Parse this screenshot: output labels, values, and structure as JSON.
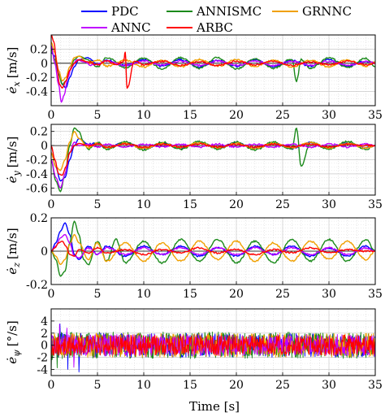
{
  "chart_data": {
    "type": "line",
    "xlabel": "Time [s]",
    "xlim": [
      0,
      35
    ],
    "x_ticks": [
      0,
      5,
      10,
      15,
      20,
      25,
      30,
      35
    ],
    "grid": true,
    "minor_grid": true,
    "legend": {
      "placement": "top",
      "entries": [
        {
          "name": "PDC",
          "color": "#0000ff"
        },
        {
          "name": "ANNISMC",
          "color": "#1b8a1b"
        },
        {
          "name": "GRNNC",
          "color": "#f0a000"
        },
        {
          "name": "ANNC",
          "color": "#c000ff"
        },
        {
          "name": "ARBC",
          "color": "#ff0000"
        }
      ]
    },
    "panels": [
      {
        "id": "ex",
        "ylabel_var": "ė",
        "ylabel_sub": "x",
        "ylabel_unit": "[m/s]",
        "ylim": [
          -0.6,
          0.4
        ],
        "y_ticks": [
          -0.4,
          -0.2,
          0,
          0.2
        ],
        "y_tick_labels": [
          "-0.4",
          "-0.2",
          "0",
          "0.2"
        ],
        "series": [
          {
            "name": "PDC",
            "x": [
              0,
              0.4,
              0.8,
              1.2,
              1.6,
              2,
              2.5,
              3,
              4,
              5,
              6,
              8,
              10,
              12,
              14,
              16,
              18,
              20,
              22,
              24,
              26,
              28,
              30,
              32,
              34,
              35
            ],
            "y": [
              0.15,
              0.1,
              -0.1,
              -0.3,
              -0.35,
              -0.2,
              -0.05,
              0.05,
              0.08,
              -0.02,
              0.04,
              -0.03,
              0.05,
              -0.04,
              0.05,
              -0.05,
              0.04,
              -0.04,
              0.05,
              -0.05,
              0.04,
              -0.04,
              0.05,
              -0.04,
              0.03,
              0.0
            ]
          },
          {
            "name": "ANNISMC",
            "x": [
              0,
              0.4,
              0.8,
              1.2,
              1.6,
              2,
              2.5,
              3,
              4,
              5,
              6,
              8,
              10,
              12,
              14,
              16,
              18,
              20,
              22,
              24,
              26,
              26.5,
              27,
              28,
              30,
              32,
              34,
              35
            ],
            "y": [
              0.2,
              0.05,
              -0.15,
              -0.3,
              -0.25,
              -0.1,
              0.05,
              0.1,
              0.05,
              -0.05,
              0.08,
              -0.06,
              0.07,
              -0.08,
              0.08,
              -0.07,
              0.08,
              -0.08,
              0.06,
              -0.07,
              0.06,
              -0.25,
              0.05,
              -0.07,
              0.08,
              -0.06,
              0.07,
              -0.05
            ]
          },
          {
            "name": "GRNNC",
            "x": [
              0,
              0.4,
              0.8,
              1.2,
              1.6,
              2,
              2.5,
              3,
              4,
              5,
              6,
              8,
              10,
              12,
              14,
              16,
              18,
              20,
              22,
              24,
              26,
              28,
              30,
              32,
              34,
              35
            ],
            "y": [
              0.3,
              0.15,
              -0.1,
              -0.25,
              -0.2,
              -0.05,
              0.08,
              0.1,
              0.0,
              0.05,
              -0.04,
              0.04,
              -0.05,
              0.04,
              -0.05,
              0.05,
              -0.04,
              0.05,
              -0.04,
              0.04,
              -0.05,
              0.04,
              -0.05,
              0.05,
              -0.04,
              0.02
            ]
          },
          {
            "name": "ANNC",
            "x": [
              0,
              0.4,
              0.8,
              1.1,
              1.4,
              1.8,
              2.2,
              2.8,
              3.5,
              4.5,
              6,
              8,
              10,
              12,
              14,
              16,
              18,
              20,
              22,
              24,
              26,
              28,
              30,
              32,
              34,
              35
            ],
            "y": [
              0.25,
              0.0,
              -0.3,
              -0.55,
              -0.45,
              -0.2,
              -0.05,
              0.05,
              0.02,
              -0.03,
              0.03,
              -0.03,
              0.03,
              -0.03,
              0.03,
              -0.03,
              0.03,
              -0.03,
              0.03,
              -0.03,
              0.03,
              -0.03,
              0.03,
              -0.03,
              0.02,
              0.0
            ]
          },
          {
            "name": "ARBC",
            "x": [
              0,
              0.3,
              0.6,
              0.9,
              1.2,
              1.6,
              2,
              2.5,
              3,
              4,
              5,
              6,
              7,
              7.8,
              8.0,
              8.2,
              9,
              10,
              12,
              14,
              16,
              18,
              20,
              22,
              24,
              26,
              28,
              30,
              32,
              34,
              35
            ],
            "y": [
              0.4,
              0.3,
              0.0,
              -0.3,
              -0.35,
              -0.25,
              -0.1,
              0.0,
              0.05,
              0.02,
              -0.02,
              0.03,
              -0.02,
              0.02,
              0.15,
              -0.35,
              0.03,
              -0.02,
              0.03,
              -0.03,
              0.02,
              -0.03,
              0.03,
              -0.02,
              0.03,
              -0.03,
              0.02,
              -0.02,
              0.03,
              -0.02,
              0.0
            ]
          }
        ]
      },
      {
        "id": "ey",
        "ylabel_var": "ė",
        "ylabel_sub": "y",
        "ylabel_unit": "[m/s]",
        "ylim": [
          -0.7,
          0.3
        ],
        "y_ticks": [
          -0.6,
          -0.4,
          -0.2,
          0,
          0.2
        ],
        "y_tick_labels": [
          "-0.6",
          "-0.4",
          "-0.2",
          "0",
          "0.2"
        ],
        "series": [
          {
            "name": "PDC",
            "x": [
              0,
              0.5,
              1,
              1.5,
              2,
              2.5,
              3,
              4,
              5,
              6,
              8,
              10,
              12,
              14,
              16,
              18,
              20,
              22,
              24,
              26,
              28,
              30,
              32,
              34,
              35
            ],
            "y": [
              -0.1,
              -0.3,
              -0.5,
              -0.45,
              -0.2,
              0.0,
              0.1,
              0.02,
              0.03,
              -0.03,
              0.04,
              -0.04,
              0.03,
              -0.04,
              0.04,
              -0.03,
              0.04,
              -0.04,
              0.03,
              -0.04,
              0.04,
              -0.03,
              0.04,
              -0.03,
              0.0
            ]
          },
          {
            "name": "ANNISMC",
            "x": [
              0,
              0.5,
              1,
              1.5,
              2,
              2.5,
              3,
              3.5,
              4,
              5,
              6,
              8,
              10,
              12,
              14,
              16,
              18,
              20,
              22,
              24,
              26,
              26.5,
              27,
              28,
              30,
              32,
              34,
              35
            ],
            "y": [
              -0.2,
              -0.5,
              -0.65,
              -0.4,
              0.0,
              0.25,
              0.2,
              0.05,
              -0.05,
              0.05,
              -0.05,
              0.05,
              -0.06,
              0.05,
              -0.05,
              0.06,
              -0.05,
              0.05,
              -0.06,
              0.05,
              -0.05,
              0.25,
              -0.3,
              0.05,
              -0.05,
              0.06,
              -0.05,
              0.0
            ]
          },
          {
            "name": "GRNNC",
            "x": [
              0,
              0.5,
              1,
              1.5,
              2,
              2.5,
              3,
              4,
              5,
              6,
              8,
              10,
              12,
              14,
              16,
              18,
              20,
              22,
              24,
              26,
              28,
              30,
              32,
              34,
              35
            ],
            "y": [
              -0.1,
              -0.3,
              -0.35,
              -0.2,
              0.05,
              0.2,
              0.1,
              -0.03,
              0.03,
              -0.03,
              0.03,
              -0.04,
              0.03,
              -0.03,
              0.04,
              -0.03,
              0.03,
              -0.04,
              0.03,
              -0.03,
              0.04,
              -0.03,
              0.03,
              -0.03,
              0.0
            ]
          },
          {
            "name": "ANNC",
            "x": [
              0,
              0.5,
              1,
              1.5,
              2,
              2.5,
              3,
              4,
              5,
              6,
              8,
              10,
              12,
              14,
              16,
              18,
              20,
              22,
              24,
              26,
              28,
              30,
              32,
              34,
              35
            ],
            "y": [
              -0.2,
              -0.45,
              -0.6,
              -0.4,
              -0.1,
              0.05,
              0.0,
              0.02,
              -0.02,
              0.02,
              -0.02,
              0.02,
              -0.02,
              0.02,
              -0.02,
              0.02,
              -0.02,
              0.02,
              -0.02,
              0.02,
              -0.02,
              0.02,
              -0.02,
              0.02,
              0.0
            ]
          },
          {
            "name": "ARBC",
            "x": [
              0,
              0.4,
              0.8,
              1.2,
              1.6,
              2,
              2.5,
              3,
              4,
              5,
              6,
              8,
              10,
              12,
              14,
              16,
              18,
              20,
              22,
              24,
              26,
              28,
              30,
              32,
              34,
              35
            ],
            "y": [
              0.0,
              -0.2,
              -0.4,
              -0.42,
              -0.3,
              -0.1,
              0.0,
              0.03,
              0.0,
              0.02,
              -0.02,
              0.02,
              -0.02,
              0.02,
              -0.02,
              0.02,
              -0.02,
              0.02,
              -0.02,
              0.02,
              -0.02,
              0.02,
              -0.02,
              0.02,
              0.0,
              0.0
            ]
          }
        ]
      },
      {
        "id": "ez",
        "ylabel_var": "ė",
        "ylabel_sub": "z",
        "ylabel_unit": "[m/s]",
        "ylim": [
          -0.2,
          0.2
        ],
        "y_ticks": [
          -0.2,
          0,
          0.2
        ],
        "y_tick_labels": [
          "-0.2",
          "0",
          "0.2"
        ],
        "series": [
          {
            "name": "PDC",
            "x": [
              0,
              0.5,
              1,
              1.5,
              2,
              2.5,
              3,
              4,
              5,
              6,
              8,
              10,
              12,
              14,
              16,
              18,
              20,
              22,
              24,
              26,
              28,
              30,
              32,
              34,
              35
            ],
            "y": [
              0.0,
              0.05,
              0.12,
              0.17,
              0.1,
              -0.02,
              -0.05,
              0.03,
              -0.02,
              0.03,
              -0.03,
              0.03,
              -0.02,
              0.03,
              -0.03,
              0.02,
              -0.03,
              0.03,
              -0.02,
              0.03,
              -0.03,
              0.02,
              -0.03,
              0.03,
              0.0
            ]
          },
          {
            "name": "ANNISMC",
            "x": [
              0,
              0.5,
              1,
              1.5,
              2,
              2.5,
              3,
              3.5,
              4,
              5,
              6,
              7,
              8,
              10,
              12,
              14,
              16,
              18,
              20,
              22,
              24,
              26,
              28,
              30,
              32,
              34,
              35
            ],
            "y": [
              0.0,
              -0.05,
              -0.15,
              -0.12,
              0.05,
              0.18,
              0.1,
              -0.05,
              -0.08,
              0.06,
              -0.06,
              0.07,
              -0.07,
              0.06,
              -0.07,
              0.07,
              -0.06,
              0.07,
              -0.07,
              0.06,
              -0.07,
              0.07,
              -0.06,
              0.07,
              -0.06,
              0.07,
              0.0
            ]
          },
          {
            "name": "GRNNC",
            "x": [
              0,
              0.5,
              1,
              1.5,
              2,
              2.5,
              3,
              4,
              5,
              6,
              8,
              10,
              12,
              14,
              16,
              18,
              20,
              22,
              24,
              26,
              28,
              30,
              32,
              34,
              35
            ],
            "y": [
              0.0,
              -0.03,
              -0.08,
              -0.05,
              0.04,
              0.1,
              0.05,
              -0.05,
              0.05,
              -0.06,
              0.05,
              -0.06,
              0.05,
              -0.06,
              0.06,
              -0.05,
              0.06,
              -0.06,
              0.05,
              -0.06,
              0.06,
              -0.05,
              0.06,
              -0.05,
              0.0
            ]
          },
          {
            "name": "ANNC",
            "x": [
              0,
              0.5,
              1,
              1.5,
              2,
              2.5,
              3,
              4,
              5,
              6,
              8,
              10,
              12,
              14,
              16,
              18,
              20,
              22,
              24,
              26,
              28,
              30,
              32,
              34,
              35
            ],
            "y": [
              0.0,
              0.03,
              0.08,
              0.1,
              0.05,
              -0.03,
              -0.04,
              0.02,
              -0.02,
              0.02,
              -0.02,
              0.02,
              -0.02,
              0.02,
              -0.02,
              0.02,
              -0.02,
              0.02,
              -0.02,
              0.02,
              -0.02,
              0.02,
              -0.02,
              0.02,
              0.0
            ]
          },
          {
            "name": "ARBC",
            "x": [
              0,
              0.4,
              0.8,
              1.2,
              1.6,
              2,
              2.5,
              3,
              4,
              5,
              6,
              8,
              10,
              12,
              14,
              16,
              18,
              20,
              22,
              24,
              26,
              28,
              30,
              32,
              34,
              35
            ],
            "y": [
              0.0,
              0.02,
              0.05,
              0.06,
              0.03,
              -0.02,
              -0.03,
              0.01,
              -0.01,
              0.02,
              -0.01,
              0.01,
              -0.02,
              0.01,
              -0.01,
              0.02,
              -0.01,
              0.01,
              -0.02,
              0.01,
              -0.01,
              0.02,
              -0.01,
              0.01,
              0.0,
              0.0
            ]
          }
        ]
      },
      {
        "id": "epsi",
        "ylabel_var": "ė",
        "ylabel_sub": "ψ",
        "ylabel_unit": "[°/s]",
        "ylim": [
          -5,
          6
        ],
        "y_ticks": [
          -4,
          -2,
          0,
          2,
          4
        ],
        "y_tick_labels": [
          "-4",
          "-2",
          "0",
          "2",
          "4"
        ],
        "noise": true,
        "series": [
          {
            "name": "PDC",
            "amplitude": 2.0,
            "seed": 11
          },
          {
            "name": "ANNISMC",
            "amplitude": 2.2,
            "seed": 23
          },
          {
            "name": "GRNNC",
            "amplitude": 2.0,
            "seed": 37
          },
          {
            "name": "ANNC",
            "amplitude": 1.8,
            "seed": 41
          },
          {
            "name": "ARBC",
            "amplitude": 1.7,
            "seed": 53
          }
        ]
      }
    ]
  }
}
